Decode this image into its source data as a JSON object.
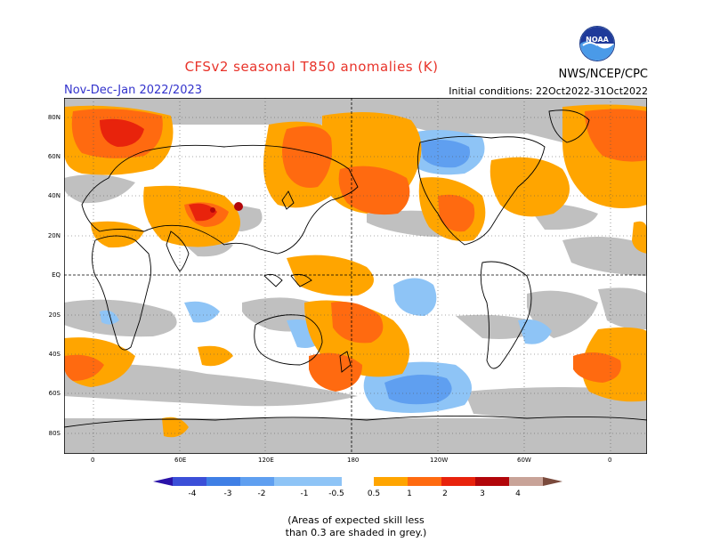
{
  "title": "CFSv2 seasonal T850 anomalies (K)",
  "period": "Nov-Dec-Jan 2022/2023",
  "agency": "NWS/NCEP/CPC",
  "logo_text": "NOAA",
  "initial_conditions": "Initial conditions: 22Oct2022-31Oct2022",
  "map": {
    "lat_labels": [
      "80N",
      "60N",
      "40N",
      "20N",
      "EQ",
      "20S",
      "40S",
      "60S",
      "80S"
    ],
    "lon_labels": [
      "0",
      "60E",
      "120E",
      "180",
      "120W",
      "60W",
      "0"
    ],
    "grid": "dotted"
  },
  "legend": {
    "levels": [
      "-4",
      "-3",
      "-2",
      "-1",
      "-0.5",
      "0.5",
      "1",
      "2",
      "3",
      "4"
    ],
    "colors": [
      "#2a12a8",
      "#3b4fd8",
      "#3f7fe5",
      "#5f9ff0",
      "#8ec4f6",
      "#ffffff",
      "#ffa500",
      "#ff6a10",
      "#e8230c",
      "#b2060a",
      "#c8a398",
      "#7a4a3c"
    ]
  },
  "skill_note": {
    "line1": "(Areas of expected skill less",
    "line2": "than 0.3 are shaded in grey.)"
  },
  "colors": {
    "grey": "#c0c0c0",
    "title": "#e8332a",
    "period": "#3333cc"
  }
}
